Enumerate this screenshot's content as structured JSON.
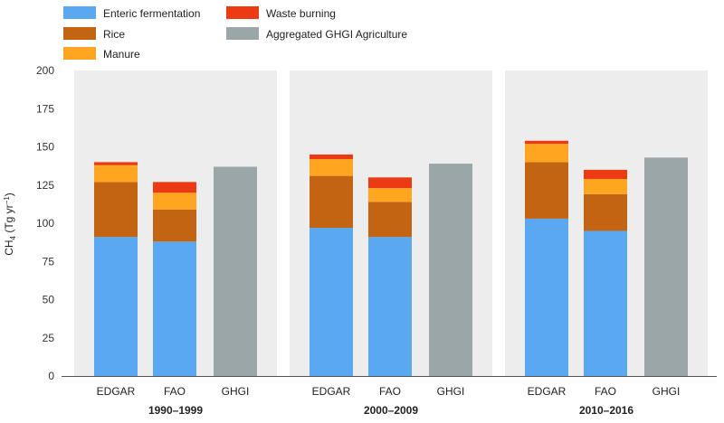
{
  "chart_data": {
    "type": "bar",
    "stacked": true,
    "ylabel": "CH4 (Tg yr−1)",
    "ylabel_parts": {
      "base": "CH",
      "sub": "4",
      "mid": " (Tg yr",
      "sup": "−1",
      "end": ")"
    },
    "ylim": [
      0,
      200
    ],
    "yticks": [
      0,
      25,
      50,
      75,
      100,
      125,
      150,
      175,
      200
    ],
    "yticklabels": [
      "0",
      "25",
      "50",
      "75",
      "100",
      "125",
      "150",
      "175",
      "200"
    ],
    "grid": false,
    "legend_position": "top-left",
    "groups": [
      "1990–1999",
      "2000–2009",
      "2010–2016"
    ],
    "categories": [
      "EDGAR",
      "FAO",
      "GHGI"
    ],
    "series": [
      {
        "name": "Enteric fermentation",
        "color": "#5aa8f0",
        "values": [
          [
            91,
            88,
            0
          ],
          [
            97,
            91,
            0
          ],
          [
            103,
            95,
            0
          ]
        ]
      },
      {
        "name": "Rice",
        "color": "#c26412",
        "values": [
          [
            36,
            21,
            0
          ],
          [
            34,
            23,
            0
          ],
          [
            37,
            24,
            0
          ]
        ]
      },
      {
        "name": "Manure",
        "color": "#ffa520",
        "values": [
          [
            11,
            11,
            0
          ],
          [
            11,
            9,
            0
          ],
          [
            12,
            10,
            0
          ]
        ]
      },
      {
        "name": "Waste burning",
        "color": "#ec3a14",
        "values": [
          [
            2,
            7,
            0
          ],
          [
            3,
            7,
            0
          ],
          [
            2,
            6,
            0
          ]
        ]
      },
      {
        "name": "Aggregated GHGI Agriculture",
        "color": "#9ba6a8",
        "values": [
          [
            0,
            0,
            137
          ],
          [
            0,
            0,
            139
          ],
          [
            0,
            0,
            143
          ]
        ]
      }
    ],
    "legend_order": [
      "Enteric fermentation",
      "Rice",
      "Manure",
      "Waste burning",
      "Aggregated GHGI Agriculture"
    ]
  }
}
